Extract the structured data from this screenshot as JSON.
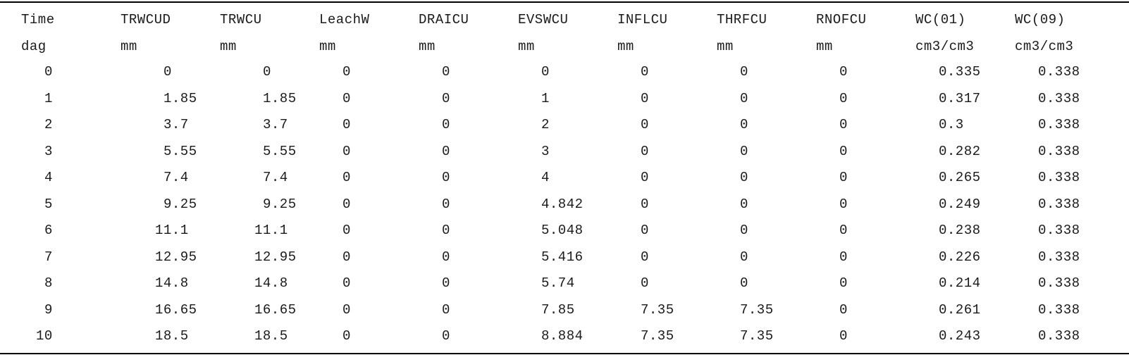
{
  "table": {
    "headers": [
      "Time",
      "TRWCUD",
      "TRWCU",
      "LeachW",
      "DRAICU",
      "EVSWCU",
      "INFLCU",
      "THRFCU",
      "RNOFCU",
      "WC(01)",
      "WC(09)"
    ],
    "units": [
      "dag",
      "mm",
      "mm",
      "mm",
      "mm",
      "mm",
      "mm",
      "mm",
      "mm",
      "cm3/cm3",
      "cm3/cm3"
    ],
    "rows": [
      [
        "0",
        "0",
        "0",
        "0",
        "0",
        "0",
        "0",
        "0",
        "0",
        "0.335",
        "0.338"
      ],
      [
        "1",
        "1.85",
        "1.85",
        "0",
        "0",
        "1",
        "0",
        "0",
        "0",
        "0.317",
        "0.338"
      ],
      [
        "2",
        "3.7",
        "3.7",
        "0",
        "0",
        "2",
        "0",
        "0",
        "0",
        "0.3",
        "0.338"
      ],
      [
        "3",
        "5.55",
        "5.55",
        "0",
        "0",
        "3",
        "0",
        "0",
        "0",
        "0.282",
        "0.338"
      ],
      [
        "4",
        "7.4",
        "7.4",
        "0",
        "0",
        "4",
        "0",
        "0",
        "0",
        "0.265",
        "0.338"
      ],
      [
        "5",
        "9.25",
        "9.25",
        "0",
        "0",
        "4.842",
        "0",
        "0",
        "0",
        "0.249",
        "0.338"
      ],
      [
        "6",
        "11.1",
        "11.1",
        "0",
        "0",
        "5.048",
        "0",
        "0",
        "0",
        "0.238",
        "0.338"
      ],
      [
        "7",
        "12.95",
        "12.95",
        "0",
        "0",
        "5.416",
        "0",
        "0",
        "0",
        "0.226",
        "0.338"
      ],
      [
        "8",
        "14.8",
        "14.8",
        "0",
        "0",
        "5.74",
        "0",
        "0",
        "0",
        "0.214",
        "0.338"
      ],
      [
        "9",
        "16.65",
        "16.65",
        "0",
        "0",
        "7.85",
        "7.35",
        "7.35",
        "0",
        "0.261",
        "0.338"
      ],
      [
        "10",
        "18.5",
        "18.5",
        "0",
        "0",
        "8.884",
        "7.35",
        "7.35",
        "0",
        "0.243",
        "0.338"
      ]
    ]
  }
}
